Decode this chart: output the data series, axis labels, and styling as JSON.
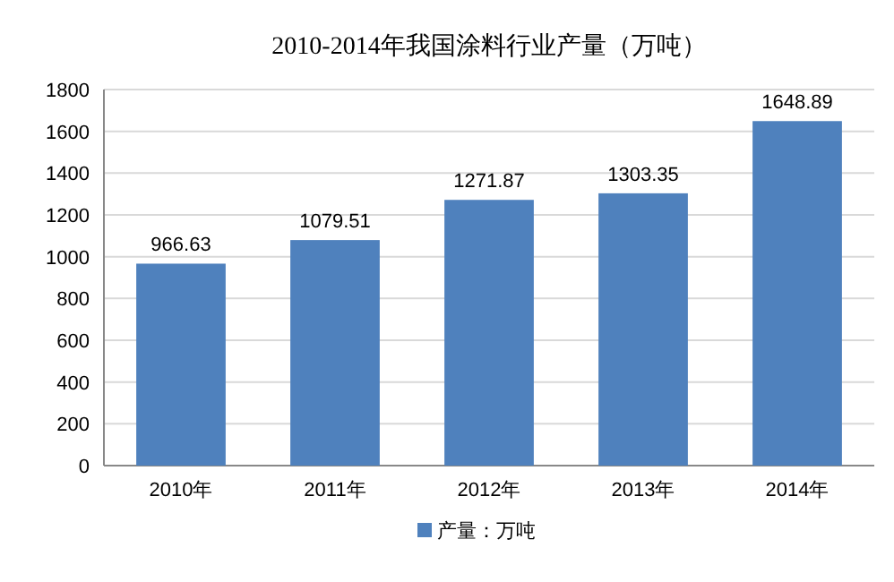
{
  "chart_data": {
    "type": "bar",
    "title": "2010-2014年我国涂料行业产量（万吨）",
    "categories": [
      "2010年",
      "2011年",
      "2012年",
      "2013年",
      "2014年"
    ],
    "series": [
      {
        "name": "产量：万吨",
        "color": "#4f81bd",
        "values": [
          966.63,
          1079.51,
          1271.87,
          1303.35,
          1648.89
        ]
      }
    ],
    "ylim": [
      0,
      1800
    ],
    "yticks": [
      0,
      200,
      400,
      600,
      800,
      1000,
      1200,
      1400,
      1600,
      1800
    ],
    "grid": "y",
    "data_labels": true,
    "legend": "bottom"
  }
}
